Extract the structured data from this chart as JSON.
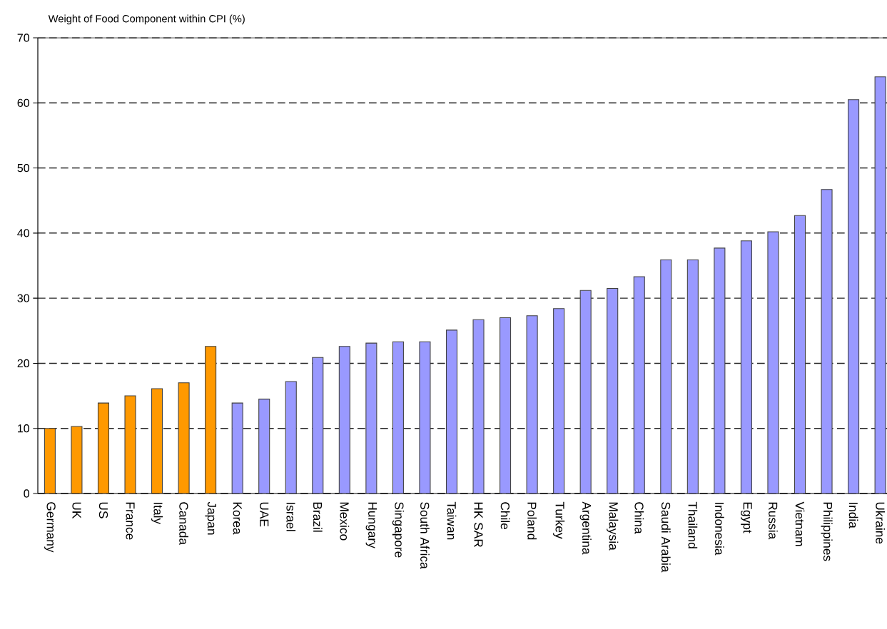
{
  "chart_data": {
    "type": "bar",
    "ylabel": "Weight of Food Component within CPI (%)",
    "categories": [
      "Germany",
      "UK",
      "US",
      "France",
      "Italy",
      "Canada",
      "Japan",
      "Korea",
      "UAE",
      "Israel",
      "Brazil",
      "Mexico",
      "Hungary",
      "Singapore",
      "South Africa",
      "Taiwan",
      "HK SAR",
      "Chile",
      "Poland",
      "Turkey",
      "Argentina",
      "Malaysia",
      "China",
      "Saudi Arabia",
      "Thailand",
      "Indonesia",
      "Egypt",
      "Russia",
      "Vietnam",
      "Philippines",
      "India",
      "Ukraine"
    ],
    "values": [
      10.0,
      10.3,
      13.9,
      15.0,
      16.1,
      17.0,
      22.6,
      13.9,
      14.5,
      17.2,
      20.9,
      22.6,
      23.1,
      23.3,
      23.3,
      25.1,
      26.7,
      27.0,
      27.3,
      28.4,
      31.2,
      31.5,
      33.3,
      35.9,
      35.9,
      37.7,
      38.8,
      40.2,
      42.7,
      46.7,
      60.5,
      64.0
    ],
    "colors": [
      "#ff9900",
      "#ff9900",
      "#ff9900",
      "#ff9900",
      "#ff9900",
      "#ff9900",
      "#ff9900",
      "#9999ff",
      "#9999ff",
      "#9999ff",
      "#9999ff",
      "#9999ff",
      "#9999ff",
      "#9999ff",
      "#9999ff",
      "#9999ff",
      "#9999ff",
      "#9999ff",
      "#9999ff",
      "#9999ff",
      "#9999ff",
      "#9999ff",
      "#9999ff",
      "#9999ff",
      "#9999ff",
      "#9999ff",
      "#9999ff",
      "#9999ff",
      "#9999ff",
      "#9999ff",
      "#9999ff",
      "#9999ff"
    ],
    "ylim": [
      0,
      70
    ],
    "yticks": [
      0,
      10,
      20,
      30,
      40,
      50,
      60,
      70
    ],
    "grid": "y"
  }
}
